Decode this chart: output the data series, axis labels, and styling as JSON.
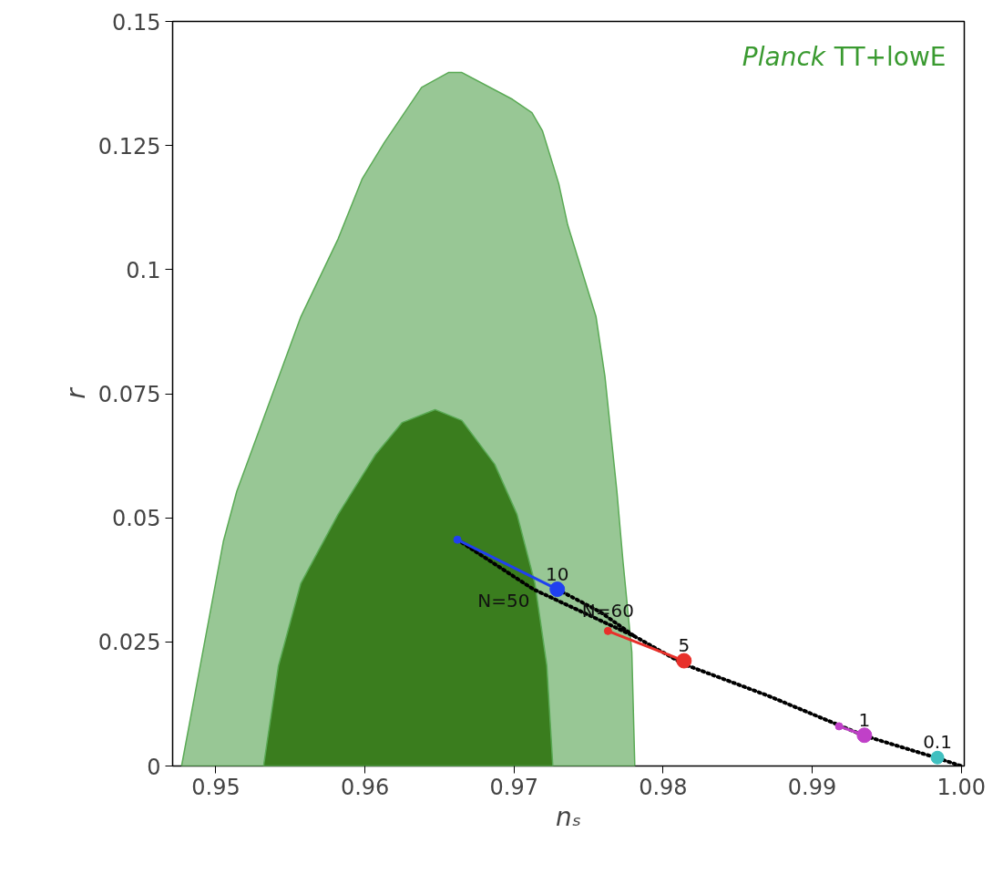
{
  "chart_data": {
    "type": "line",
    "xlabel": "nₛ",
    "ylabel": "r",
    "xlim": [
      0.9471,
      1.0002
    ],
    "ylim": [
      0,
      0.15
    ],
    "xticks": [
      0.95,
      0.96,
      0.97,
      0.98,
      0.99,
      {
        "value": 1.0,
        "label": "1.00"
      }
    ],
    "yticks": [
      0,
      0.025,
      0.05,
      0.075,
      0.1,
      0.125,
      0.15
    ],
    "grid": false,
    "series": [
      {
        "type": "area",
        "color": "#98c795",
        "x": [
          0.9477,
          0.9505,
          0.9514,
          0.9557,
          0.9582,
          0.9598,
          0.9613,
          0.9638,
          0.9656,
          0.9665,
          0.9699,
          0.9712,
          0.9719,
          0.973,
          0.9736,
          0.9755,
          0.9761,
          0.9769,
          0.9773,
          0.9779,
          0.9781
        ],
        "values": [
          0,
          0.0452,
          0.0553,
          0.0905,
          0.1062,
          0.1182,
          0.1256,
          0.1367,
          0.1397,
          0.1397,
          0.1343,
          0.1316,
          0.128,
          0.1173,
          0.109,
          0.0905,
          0.0784,
          0.0553,
          0.0415,
          0.023,
          0
        ]
      },
      {
        "type": "area",
        "color": "#3a7d1e",
        "x": [
          0.9532,
          0.9542,
          0.9557,
          0.9582,
          0.9607,
          0.9625,
          0.9647,
          0.9665,
          0.9687,
          0.9702,
          0.9714,
          0.9722,
          0.9726
        ],
        "values": [
          0,
          0.0202,
          0.0368,
          0.0507,
          0.0627,
          0.0692,
          0.0718,
          0.0696,
          0.0608,
          0.0507,
          0.0368,
          0.0202,
          0
        ]
      },
      {
        "color": "#000000",
        "line_style": "dotted",
        "x": [
          0.9662,
          0.9713,
          0.9781,
          0.9814,
          0.987,
          0.9935,
          0.9985,
          1.0
        ],
        "values": [
          0.0456,
          0.0356,
          0.0261,
          0.0205,
          0.0142,
          0.0061,
          0.0015,
          0
        ]
      },
      {
        "color": "#000000",
        "line_style": "dotted",
        "x": [
          0.9729,
          0.9758,
          0.9781
        ],
        "values": [
          0.0356,
          0.031,
          0.0261
        ]
      },
      {
        "color": "#2040f0",
        "marker": "circle",
        "x": [
          0.9662,
          0.9729
        ],
        "values": [
          0.0456,
          0.0356
        ]
      },
      {
        "color": "#e8302a",
        "marker": "circle",
        "x": [
          0.9763,
          0.9814
        ],
        "values": [
          0.0272,
          0.0212
        ]
      },
      {
        "color": "#c040c8",
        "marker": "circle",
        "x": [
          0.9918,
          0.9935
        ],
        "values": [
          0.008,
          0.0062
        ]
      },
      {
        "type": "scatter",
        "color": "#40c0c0",
        "marker": "circle",
        "x": [
          0.9984
        ],
        "values": [
          0.0017
        ]
      }
    ],
    "annotations": [
      {
        "text": "Planck TT+lowE"
      },
      {
        "text": "10",
        "x": 0.9729,
        "y": 0.0356
      },
      {
        "text": "N=50",
        "x": 0.9713,
        "y": 0.0356
      },
      {
        "text": "N=60",
        "x": 0.9763,
        "y": 0.0272
      },
      {
        "text": "5",
        "x": 0.9814,
        "y": 0.0212
      },
      {
        "text": "1",
        "x": 0.9935,
        "y": 0.0062
      },
      {
        "text": "0.1",
        "x": 0.9984,
        "y": 0.0017
      }
    ]
  }
}
